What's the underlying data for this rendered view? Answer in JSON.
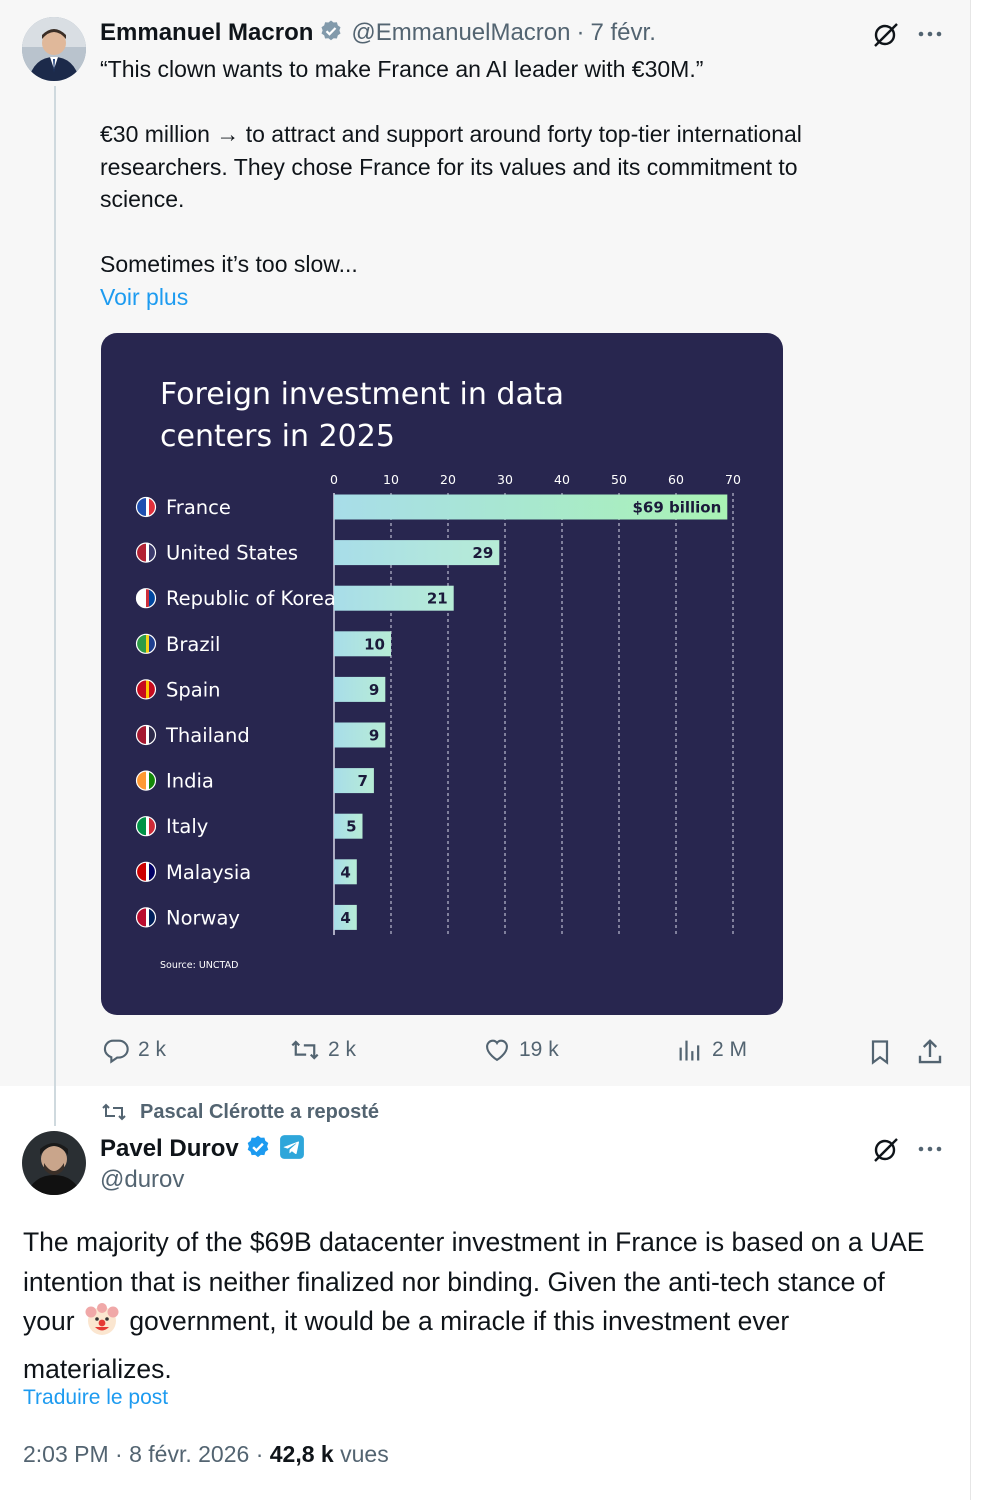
{
  "quoted_tweet": {
    "author_name": "Emmanuel Macron",
    "author_handle": "@EmmanuelMacron",
    "date": "7 févr.",
    "text_lines": [
      "“This clown wants to make France an AI leader with €30M.”",
      "",
      "€30 million → to attract and support around forty top-tier international",
      "researchers. They chose France for its values and its commitment to",
      "science.",
      "",
      "Sometimes it’s too slow..."
    ],
    "show_more": "Voir plus",
    "actions": {
      "replies": "2 k",
      "reposts": "2 k",
      "likes": "19 k",
      "views": "2 M"
    }
  },
  "chart_data": {
    "type": "bar",
    "title": "Foreign investment in data centers in 2025",
    "title_lines": [
      "Foreign investment in data",
      "centers in 2025"
    ],
    "categories": [
      "France",
      "United States",
      "Republic of Korea",
      "Brazil",
      "Spain",
      "Thailand",
      "India",
      "Italy",
      "Malaysia",
      "Norway"
    ],
    "values": [
      69,
      29,
      21,
      10,
      9,
      9,
      7,
      5,
      4,
      4
    ],
    "value_labels": [
      "$69 billion",
      "29",
      "21",
      "10",
      "9",
      "9",
      "7",
      "5",
      "4",
      "4"
    ],
    "xticks": [
      "0",
      "10",
      "20",
      "30",
      "40",
      "50",
      "60",
      "70"
    ],
    "xlim": [
      0,
      70
    ],
    "source": "Source: UNCTAD",
    "grid": true
  },
  "repost_bar": {
    "text": "Pascal Clérotte a reposté"
  },
  "main_tweet": {
    "author_name": "Pavel Durov",
    "author_handle": "@durov",
    "text_before_emoji": "The majority of the $69B datacenter investment in France is based on a UAE intention that is neither finalized nor binding. Given the anti-tech stance of your",
    "text_after_emoji": "government, it would be a miracle if this investment ever materializes.",
    "translate": "Traduire le post",
    "time": "2:03 PM",
    "date": "8 févr. 2026",
    "views_count": "42,8 k",
    "views_label": "vues"
  },
  "colors": {
    "accent": "#1d9bf0",
    "chart_bg": "#28264f",
    "bar_start": "#a8dde9",
    "bar_end": "#a9f3b4"
  }
}
